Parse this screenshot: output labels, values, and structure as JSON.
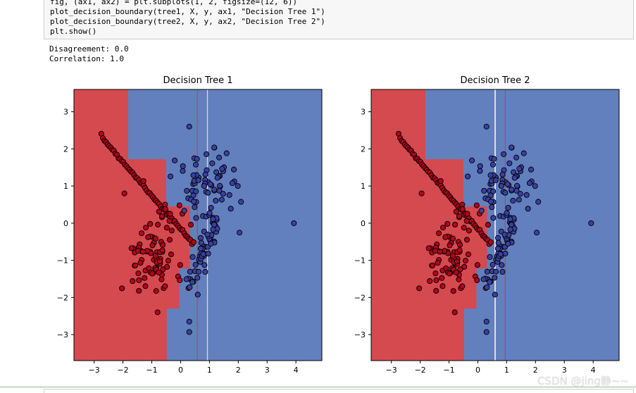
{
  "code": {
    "lines": [
      "fig, (ax1, ax2) = plt.subplots(1, 2, figsize=(12, 6))",
      "plot_decision_boundary(tree1, X, y, ax1, \"Decision Tree 1\")",
      "plot_decision_boundary(tree2, X, y, ax2, \"Decision Tree 2\")",
      "plt.show()"
    ]
  },
  "output": {
    "lines": [
      "Disagreement: 0.0",
      "Correlation: 1.0"
    ]
  },
  "colors": {
    "red_region": "#d44a4f",
    "blue_region": "#6280bd",
    "red_point": "#b3001b",
    "blue_point": "#3a3fa0",
    "point_edge": "#000000"
  },
  "chart_data": [
    {
      "type": "scatter",
      "title": "Decision Tree 1",
      "xlim": [
        -3.7,
        4.9
      ],
      "ylim": [
        -3.7,
        3.6
      ],
      "xticks": [
        "−3",
        "−2",
        "−1",
        "0",
        "1",
        "2",
        "3",
        "4"
      ],
      "yticks": [
        "3",
        "2",
        "1",
        "0",
        "−1",
        "−2",
        "−3"
      ],
      "regions": "decision tree boundary: red region on left (x < ~-0.45 to 0.3 step shape), blue region on right; thin boundary strips near x≈0.6 and x≈0.95",
      "classes": [
        "red",
        "blue"
      ]
    },
    {
      "type": "scatter",
      "title": "Decision Tree 2",
      "xlim": [
        -3.7,
        4.9
      ],
      "ylim": [
        -3.7,
        3.6
      ],
      "xticks": [
        "−3",
        "−2",
        "−1",
        "0",
        "1",
        "2",
        "3",
        "4"
      ],
      "yticks": [
        "3",
        "2",
        "1",
        "0",
        "−1",
        "−2",
        "−3"
      ],
      "regions": "decision tree boundary: red region on left (step shape), blue region on right; thin boundary strips near x≈0.6 and x≈0.95",
      "classes": [
        "red",
        "blue"
      ]
    }
  ],
  "watermark": "CSDN @jing静~~"
}
